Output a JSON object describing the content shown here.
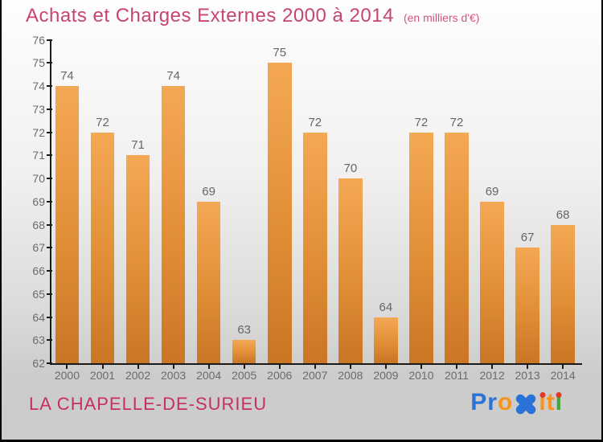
{
  "header": {
    "title": "Achats et Charges Externes 2000 à 2014",
    "subtitle": "(en milliers d'€)",
    "title_color": "#C7456F",
    "subtitle_color": "#D25681"
  },
  "chart_data": {
    "type": "bar",
    "title": "Achats et Charges Externes 2000 à 2014",
    "subtitle": "(en milliers d'€)",
    "categories": [
      "2000",
      "2001",
      "2002",
      "2003",
      "2004",
      "2005",
      "2006",
      "2007",
      "2008",
      "2009",
      "2010",
      "2011",
      "2012",
      "2013",
      "2014"
    ],
    "values": [
      74,
      72,
      71,
      74,
      69,
      63,
      75,
      72,
      70,
      64,
      72,
      72,
      69,
      67,
      68
    ],
    "xlabel": "",
    "ylabel": "",
    "ylim": [
      62,
      76
    ],
    "ytick_step": 1,
    "grid": false,
    "legend": false,
    "value_labels_shown": true,
    "bar_color_top": "#F5A854",
    "bar_color_bottom": "#C97625",
    "axis_color": "#1A1A1A",
    "tick_label_color": "#6B6B6B",
    "value_label_color": "#666666"
  },
  "footer": {
    "place": "LA CHAPELLE-DE-SURIEU",
    "place_color": "#C43063",
    "logo": {
      "name": "Proxiti",
      "letters": [
        {
          "ch": "P",
          "color": "#2B72D8"
        },
        {
          "ch": "r",
          "color": "#2B72D8"
        },
        {
          "ch": "o",
          "color": "#F7941E"
        },
        {
          "icon": "x",
          "color": "#2B72D8"
        },
        {
          "ch": "ı",
          "color": "#F7941E",
          "dot": "#E03A2A"
        },
        {
          "ch": "t",
          "color": "#F7941E"
        },
        {
          "ch": "ı",
          "color": "#3EA838",
          "dot": "#E03A2A"
        }
      ]
    }
  }
}
